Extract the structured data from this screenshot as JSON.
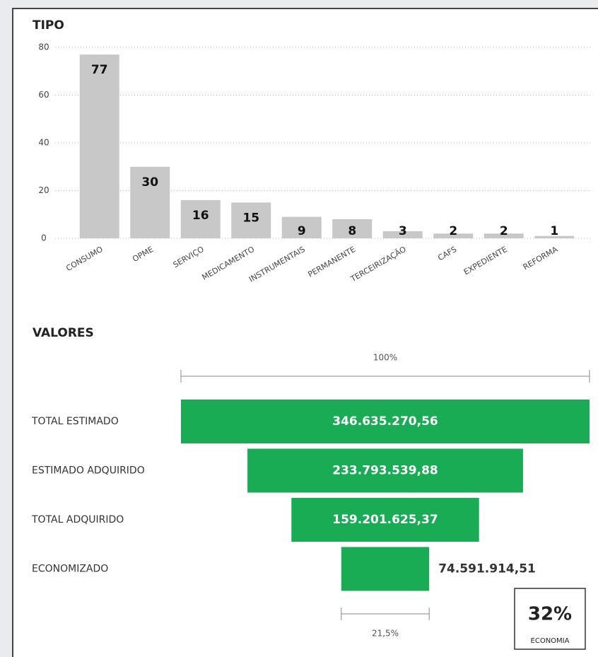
{
  "chart_data": [
    {
      "type": "bar",
      "title": "TIPO",
      "categories": [
        "CONSUMO",
        "OPME",
        "SERVIÇO",
        "MEDICAMENTO",
        "INSTRUMENTAIS",
        "PERMANENTE",
        "TERCEIRIZAÇÃO",
        "CAFS",
        "EXPEDIENTE",
        "REFORMA"
      ],
      "values": [
        77,
        30,
        16,
        15,
        9,
        8,
        3,
        2,
        2,
        1
      ],
      "color": "#c8c8c8",
      "ylim": [
        0,
        80
      ],
      "yticks": [
        0,
        20,
        40,
        60,
        80
      ],
      "grid": true
    },
    {
      "type": "funnel",
      "title": "VALORES",
      "categories": [
        "TOTAL ESTIMADO",
        "ESTIMADO ADQUIRIDO",
        "TOTAL ADQUIRIDO",
        "ECONOMIZADO"
      ],
      "values": [
        346635270.56,
        233793539.88,
        159201625.37,
        74591914.51
      ],
      "value_labels": [
        "346.635.270,56",
        "233.793.539,88",
        "159.201.625,37",
        "74.591.914,51"
      ],
      "color": "#1aab55",
      "top_label": "100%",
      "bottom_label": "21,5%",
      "kpi": {
        "value": "32%",
        "label": "ECONOMIA"
      }
    }
  ]
}
